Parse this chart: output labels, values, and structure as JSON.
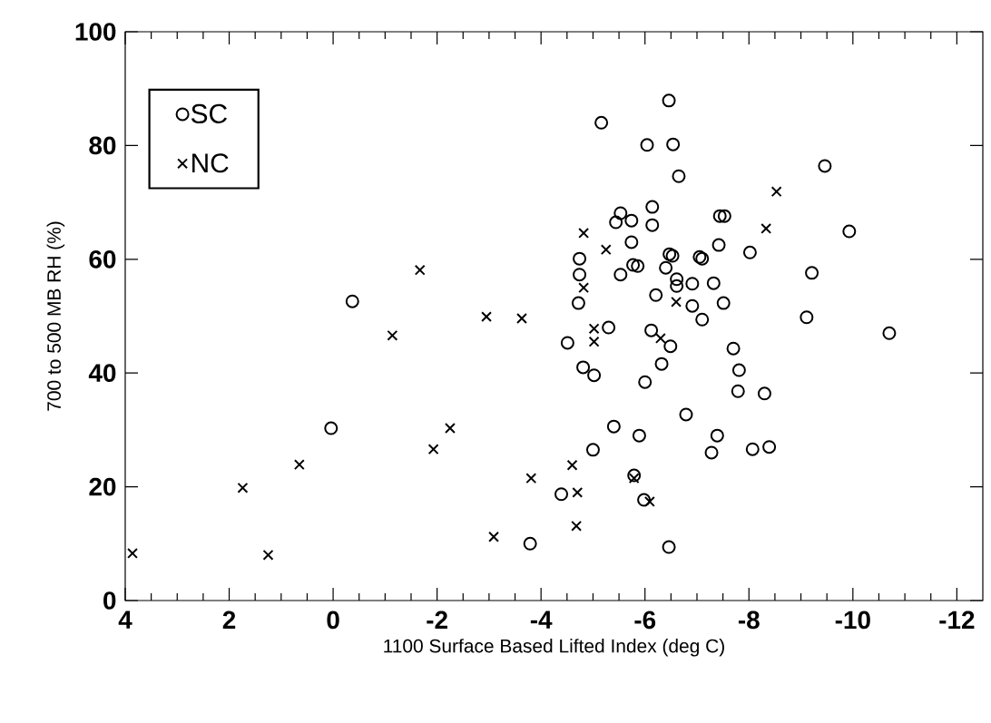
{
  "chart_data": {
    "type": "scatter",
    "xlabel": "1100 Surface Based Lifted Index (deg C)",
    "ylabel": "700 to 500 MB RH (%)",
    "xlim": [
      4,
      -12.5
    ],
    "xticks": [
      4,
      2,
      0,
      -2,
      -4,
      -6,
      -8,
      -10,
      -12
    ],
    "ylim": [
      0,
      100
    ],
    "yticks": [
      0,
      20,
      40,
      60,
      80,
      100
    ],
    "legend": "top left",
    "grid": false,
    "series": [
      {
        "name": "SC",
        "color": "#000000",
        "marker": "circle",
        "x": [
          -0.37,
          0.04,
          -6.46,
          -5.16,
          -6.04,
          -6.54,
          -6.65,
          -9.46,
          -9.93,
          -6.14,
          -6.14,
          -5.53,
          -5.74,
          -5.44,
          -7.44,
          -7.53,
          -5.74,
          -7.42,
          -8.02,
          -9.21,
          -4.74,
          -4.74,
          -4.72,
          -5.53,
          -5.77,
          -5.86,
          -6.47,
          -6.53,
          -6.4,
          -7.05,
          -7.1,
          -6.61,
          -6.61,
          -6.91,
          -7.32,
          -6.21,
          -6.91,
          -7.51,
          -7.1,
          -9.11,
          -10.7,
          -5.3,
          -6.12,
          -4.51,
          -6.49,
          -6.32,
          -6.0,
          -4.81,
          -5.02,
          -7.7,
          -7.81,
          -7.79,
          -8.3,
          -6.79,
          -5.4,
          -5.89,
          -5.0,
          -7.39,
          -7.28,
          -8.07,
          -8.39,
          -5.79,
          -5.98,
          -4.39,
          -3.79,
          -6.46
        ],
        "values": [
          52.6,
          30.3,
          87.9,
          84.0,
          80.1,
          80.2,
          74.6,
          76.4,
          64.9,
          69.2,
          66.0,
          68.1,
          66.8,
          66.5,
          67.6,
          67.6,
          63.0,
          62.5,
          61.2,
          57.6,
          60.1,
          57.3,
          52.3,
          57.3,
          59.0,
          58.8,
          60.9,
          60.6,
          58.5,
          60.4,
          60.1,
          56.5,
          55.3,
          55.7,
          55.8,
          53.7,
          51.8,
          52.3,
          49.4,
          49.8,
          47.0,
          48.0,
          47.5,
          45.3,
          44.7,
          41.6,
          38.4,
          41.0,
          39.6,
          44.3,
          40.5,
          36.8,
          36.4,
          32.7,
          30.6,
          29.0,
          26.5,
          29.0,
          26.0,
          26.6,
          27.0,
          22.0,
          17.7,
          18.7,
          10.0,
          9.4
        ]
      },
      {
        "name": "NC",
        "color": "#000000",
        "marker": "cross",
        "x": [
          -1.67,
          -1.14,
          -2.95,
          -3.63,
          -2.25,
          -1.93,
          0.65,
          1.74,
          -3.81,
          -3.09,
          1.25,
          3.86,
          -5.02,
          -5.02,
          -6.3,
          -4.6,
          -4.7,
          -5.79,
          -6.09,
          -4.68,
          -8.53,
          -8.33,
          -4.82,
          -5.25,
          -4.82,
          -6.6
        ],
        "values": [
          58.1,
          46.6,
          49.9,
          49.6,
          30.3,
          26.6,
          23.9,
          19.8,
          21.5,
          11.2,
          8.0,
          8.3,
          47.8,
          45.5,
          46.1,
          23.8,
          19.0,
          21.5,
          17.4,
          13.1,
          71.9,
          65.4,
          64.6,
          61.7,
          55.0,
          52.5
        ]
      }
    ]
  }
}
